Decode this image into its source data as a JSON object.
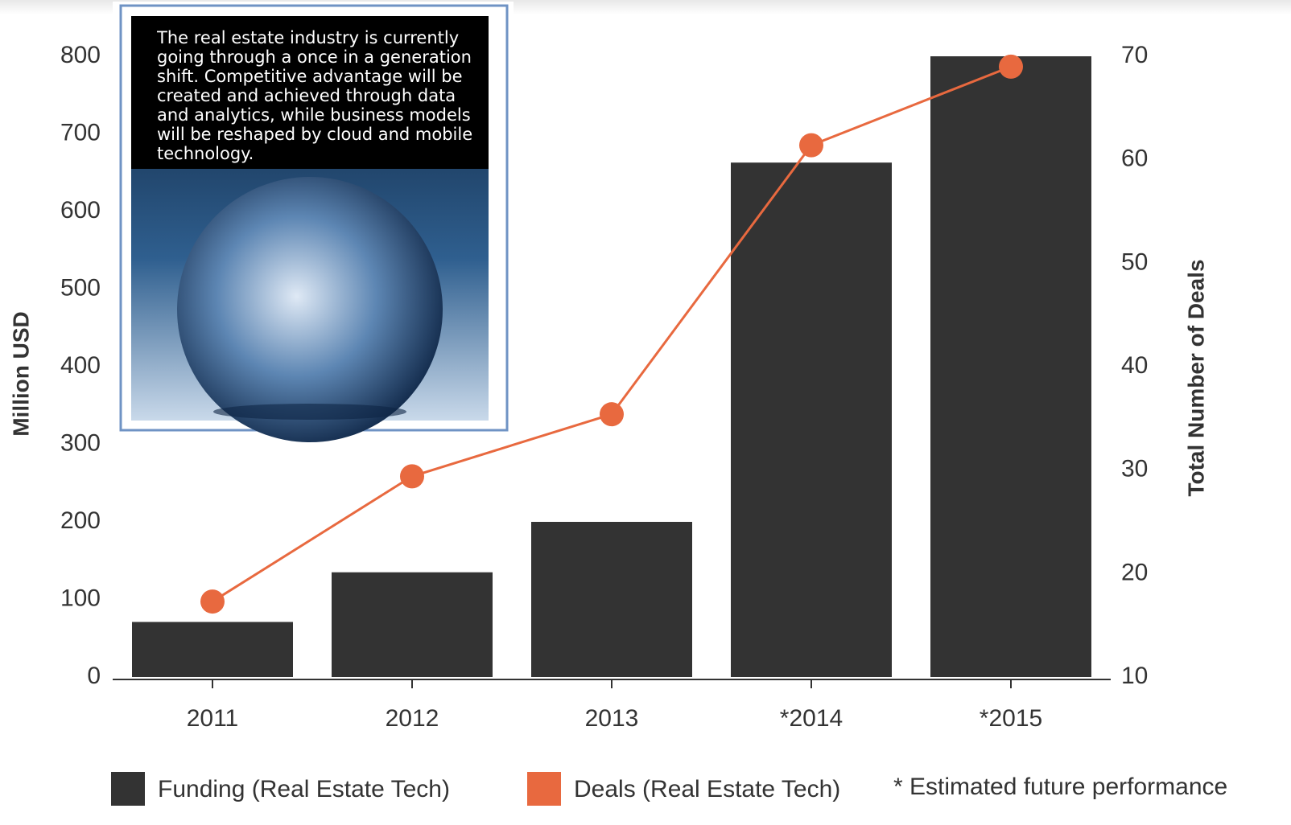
{
  "chart_data": {
    "type": "bar-line",
    "annotation": "The real estate industry is currently going through a once in a generation shift. Competitive advantage will be created and achieved through data and analytics, while business models will be reshaped by cloud and mobile technology.",
    "categories": [
      "2011",
      "2012",
      "2013",
      "*2014",
      "*2015"
    ],
    "series": [
      {
        "name": "Funding (Real Estate Tech)",
        "type": "bar",
        "color": "#333333",
        "values": [
          71,
          135,
          200,
          663,
          800
        ]
      },
      {
        "name": "Deals (Real Estate Tech)",
        "type": "line",
        "axis": "y2",
        "color": "#e8693f",
        "values": [
          17.3,
          29.4,
          35.4,
          61.4,
          69.0
        ]
      }
    ],
    "y_label": "Million USD",
    "y2_label": "Total Number of Deals",
    "ylim": [
      0,
      800
    ],
    "yticks": [
      0,
      100,
      200,
      300,
      400,
      500,
      600,
      700,
      800
    ],
    "y2lim": [
      10,
      70
    ],
    "y2ticks": [
      10,
      20,
      30,
      40,
      50,
      60,
      70
    ],
    "note": "* Estimated future performance"
  }
}
